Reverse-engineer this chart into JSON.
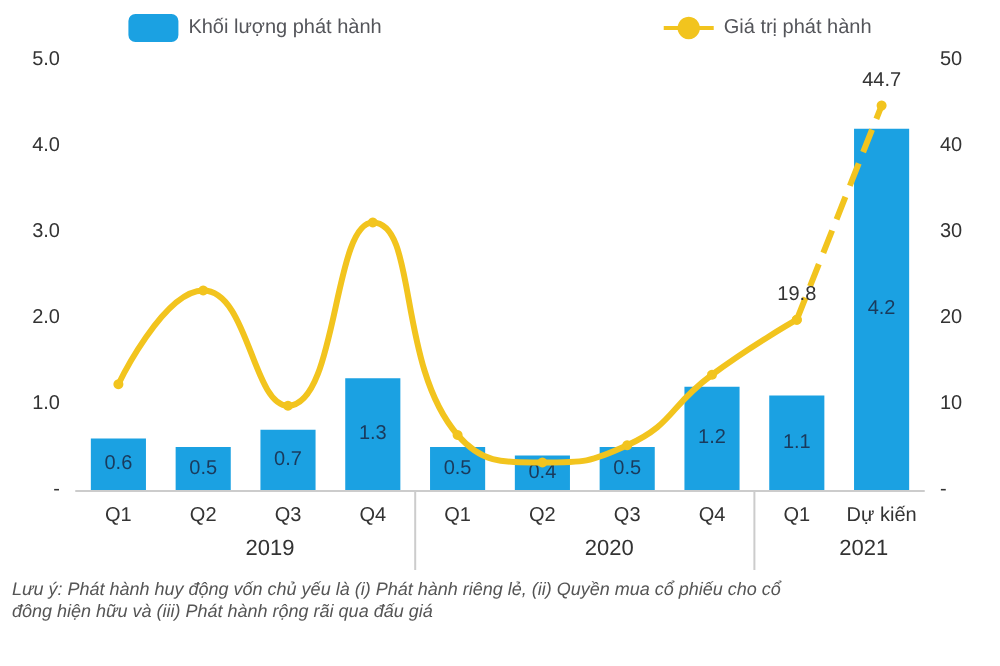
{
  "chart_data": {
    "type": "bar",
    "categories": [
      "Q1",
      "Q2",
      "Q3",
      "Q4",
      "Q1",
      "Q2",
      "Q3",
      "Q4",
      "Q1",
      "Dự kiến"
    ],
    "series": [
      {
        "name": "Khối lượng phát hành",
        "color": "#1ba1e2",
        "values": [
          0.6,
          0.5,
          0.7,
          1.3,
          0.5,
          0.4,
          0.5,
          1.2,
          1.1,
          4.2
        ],
        "data_labels": true
      },
      {
        "name": "Giá trị phát hành",
        "type": "line",
        "axis": "y2",
        "color": "#f2c41e",
        "marker": "circle",
        "line_style": "solid",
        "values": [
          12.3,
          23.2,
          9.8,
          31.1,
          6.4,
          3.2,
          5.2,
          13.4,
          19.8,
          null
        ],
        "value_labels": [
          null,
          null,
          null,
          null,
          null,
          null,
          null,
          null,
          "19.8",
          null
        ]
      },
      {
        "type": "line",
        "axis": "y2",
        "color": "#f2c41e",
        "marker": "circle",
        "line_style": "dashed",
        "values": [
          null,
          null,
          null,
          null,
          null,
          null,
          null,
          null,
          19.8,
          44.7
        ],
        "value_labels": [
          null,
          null,
          null,
          null,
          null,
          null,
          null,
          null,
          null,
          "44.7"
        ]
      }
    ],
    "ylim": [
      0,
      5
    ],
    "yticks": [
      {
        "value": 0,
        "label": "-"
      },
      {
        "value": 1,
        "label": "1.0"
      },
      {
        "value": 2,
        "label": "2.0"
      },
      {
        "value": 3,
        "label": "3.0"
      },
      {
        "value": 4,
        "label": "4.0"
      },
      {
        "value": 5,
        "label": "5.0"
      }
    ],
    "y2lim": [
      0,
      50
    ],
    "y2ticks": [
      {
        "value": 0,
        "label": "-"
      },
      10,
      20,
      30,
      40,
      50
    ],
    "grid": false,
    "legend": "top",
    "annotations": [
      "2019",
      "2020",
      "2021",
      "Lưu ý: Phát hành huy động vốn chủ yếu là (i) Phát hành riêng lẻ, (ii) Quyền mua cổ phiếu cho cổ đông hiện hữu và (iii) Phát hành rộng rãi qua đấu giá"
    ]
  }
}
